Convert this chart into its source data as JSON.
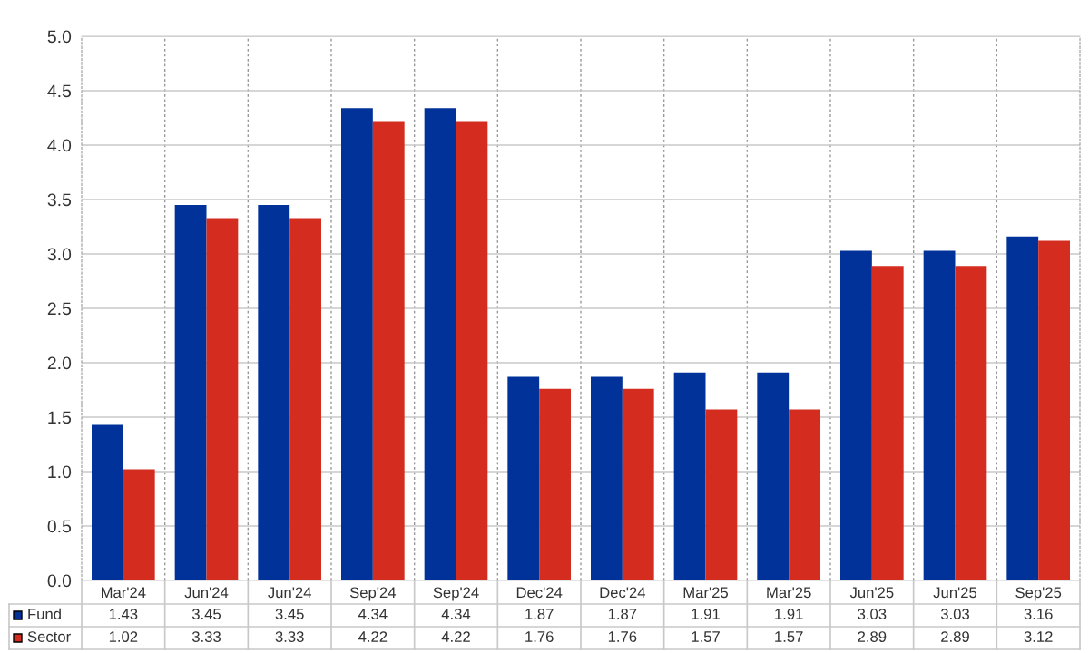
{
  "chart_data": {
    "type": "bar",
    "categories": [
      "Mar'24",
      "Jun'24",
      "Jun'24",
      "Sep'24",
      "Sep'24",
      "Dec'24",
      "Dec'24",
      "Mar'25",
      "Mar'25",
      "Jun'25",
      "Jun'25",
      "Sep'25"
    ],
    "series": [
      {
        "name": "Fund",
        "color": "#003299",
        "values": [
          1.43,
          3.45,
          3.45,
          4.34,
          4.34,
          1.87,
          1.87,
          1.91,
          1.91,
          3.03,
          3.03,
          3.16
        ]
      },
      {
        "name": "Sector",
        "color": "#d42d20",
        "values": [
          1.02,
          3.33,
          3.33,
          4.22,
          4.22,
          1.76,
          1.76,
          1.57,
          1.57,
          2.89,
          2.89,
          3.12
        ]
      }
    ],
    "ylim": [
      0,
      5
    ],
    "yticks": [
      {
        "value": 0,
        "label": "0.0"
      },
      {
        "value": 0.5,
        "label": "0.5"
      },
      {
        "value": 1,
        "label": "1.0"
      },
      {
        "value": 1.5,
        "label": "1.5"
      },
      {
        "value": 2,
        "label": "2.0"
      },
      {
        "value": 2.5,
        "label": "2.5"
      },
      {
        "value": 3,
        "label": "3.0"
      },
      {
        "value": 3.5,
        "label": "3.5"
      },
      {
        "value": 4,
        "label": "4.0"
      },
      {
        "value": 4.5,
        "label": "4.5"
      },
      {
        "value": 5,
        "label": "5.0"
      }
    ],
    "grid": true,
    "legend": "bottom left",
    "data_labels": true
  }
}
